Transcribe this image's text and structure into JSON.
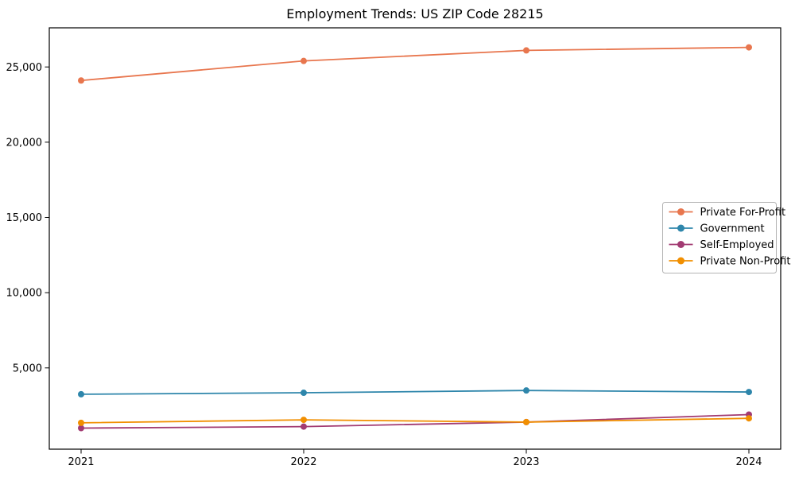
{
  "chart_data": {
    "type": "line",
    "title": "Employment Trends: US ZIP Code 28215",
    "xlabel": "",
    "ylabel": "",
    "x": [
      2021,
      2022,
      2023,
      2024
    ],
    "xticklabels": [
      "2021",
      "2022",
      "2023",
      "2024"
    ],
    "yticks": [
      5000,
      10000,
      15000,
      20000,
      25000
    ],
    "yticklabels": [
      "5,000",
      "10,000",
      "15,000",
      "20,000",
      "25,000"
    ],
    "ylim": [
      -400,
      27600
    ],
    "grid": false,
    "marker": "o",
    "legend_position": "center-right",
    "legend_border_color": "#b3b3b3",
    "axis_color": "#000000",
    "series": [
      {
        "name": "Private For-Profit",
        "color": "#e8764e",
        "values": [
          24100,
          25400,
          26100,
          26300
        ]
      },
      {
        "name": "Government",
        "color": "#2e86ab",
        "values": [
          3250,
          3350,
          3500,
          3400
        ]
      },
      {
        "name": "Self-Employed",
        "color": "#a23b72",
        "values": [
          1000,
          1100,
          1400,
          1900
        ]
      },
      {
        "name": "Private Non-Profit",
        "color": "#f18f01",
        "values": [
          1350,
          1550,
          1400,
          1650
        ]
      }
    ]
  }
}
